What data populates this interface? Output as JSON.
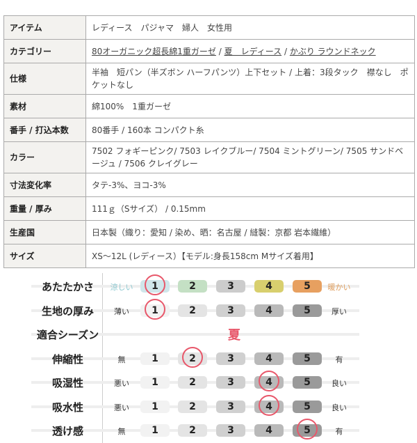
{
  "spec_table": [
    {
      "key": "アイテム",
      "value": "レディース　パジャマ　婦人　女性用"
    },
    {
      "key": "カテゴリー",
      "links": [
        "80オーガニック超長綿1重ガーゼ",
        "夏　レディース",
        "かぶり ラウンドネック"
      ],
      "sep": " / "
    },
    {
      "key": "仕様",
      "value": "半袖　短パン（半ズボン ハーフパンツ）上下セット / 上着：3段タック　襟なし　ポケットなし"
    },
    {
      "key": "素材",
      "value": "綿100%　1重ガーゼ"
    },
    {
      "key": "番手 / 打込本数",
      "value": "80番手 / 160本 コンパクト糸"
    },
    {
      "key": "カラー",
      "value": "7502 フォギーピンク/ 7503 レイクブルー/ 7504 ミントグリーン/ 7505 サンドベージュ / 7506 クレイグレー"
    },
    {
      "key": "寸法変化率",
      "value": "タテ-3%、ヨコ-3%"
    },
    {
      "key": "重量 / 厚み",
      "value": "111ｇ（Sサイズ） / 0.15mm"
    },
    {
      "key": "生産国",
      "value": "日本製（織り：愛知 / 染め、晒：名古屋 / 縫製：京都 岩本繊維）"
    },
    {
      "key": "サイズ",
      "value": "XS～12L (レディース）【モデル:身長158cm Mサイズ着用】"
    }
  ],
  "ratings": [
    {
      "label": "あたたかさ",
      "left": "涼しい",
      "right": "暖かい",
      "value": 1,
      "left_color": "#8cc7cf",
      "right_color": "#e0a060",
      "colors": [
        "#cfe6ea",
        "#c4e0c4",
        "#cccccc",
        "#d8cf6e",
        "#e7a060"
      ]
    },
    {
      "label": "生地の厚み",
      "left": "薄い",
      "right": "厚い",
      "value": 1
    },
    {
      "label": "適合シーズン",
      "season": "夏"
    },
    {
      "label": "伸縮性",
      "left": "無",
      "right": "有",
      "value": 2
    },
    {
      "label": "吸湿性",
      "left": "悪い",
      "right": "良い",
      "value": 4
    },
    {
      "label": "吸水性",
      "left": "悪い",
      "right": "良い",
      "value": 4
    },
    {
      "label": "透け感",
      "left": "無",
      "right": "有",
      "value": 5
    }
  ],
  "scale": [
    "1",
    "2",
    "3",
    "4",
    "5"
  ],
  "default_colors": [
    "#f2f2f2",
    "#e4e4e4",
    "#d0d0d0",
    "#b9b9b9",
    "#9a9a9a"
  ],
  "highlight_color": "#e8576a"
}
